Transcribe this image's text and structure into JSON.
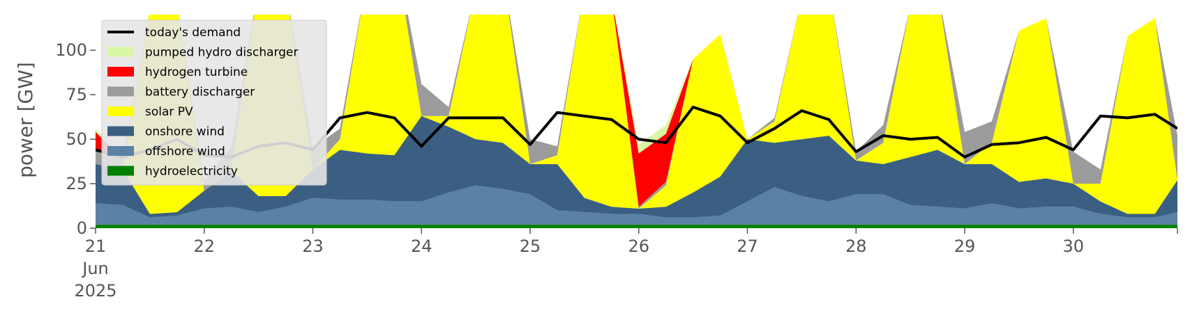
{
  "chart_data": {
    "type": "area",
    "title": "",
    "xlabel": "",
    "ylabel": "power [GW]",
    "ylim": [
      0,
      120
    ],
    "xlim": [
      "2025-06-21 00:00",
      "2025-06-30 23:00"
    ],
    "yticks": [
      0,
      25,
      50,
      75,
      100
    ],
    "xticks": [
      "2025-06-21",
      "2025-06-22",
      "2025-06-23",
      "2025-06-24",
      "2025-06-25",
      "2025-06-26",
      "2025-06-27",
      "2025-06-28",
      "2025-06-29",
      "2025-06-30"
    ],
    "xtick_labels": [
      [
        "21",
        "Jun",
        "2025"
      ],
      [
        "22"
      ],
      [
        "23"
      ],
      [
        "24"
      ],
      [
        "25"
      ],
      [
        "26"
      ],
      [
        "27"
      ],
      [
        "28"
      ],
      [
        "29"
      ],
      [
        "30"
      ]
    ],
    "grid": false,
    "legend_position": "top-left",
    "legend": [
      "today's demand",
      "pumped hydro discharger",
      "hydrogen turbine",
      "battery discharger",
      "solar PV",
      "onshore wind",
      "offshore wind",
      "hydroelectricity"
    ],
    "x_time": [
      "2025-06-21 00:00",
      "2025-06-21 06:00",
      "2025-06-21 12:00",
      "2025-06-21 18:00",
      "2025-06-22 00:00",
      "2025-06-22 06:00",
      "2025-06-22 12:00",
      "2025-06-22 18:00",
      "2025-06-23 00:00",
      "2025-06-23 06:00",
      "2025-06-23 12:00",
      "2025-06-23 18:00",
      "2025-06-24 00:00",
      "2025-06-24 06:00",
      "2025-06-24 12:00",
      "2025-06-24 18:00",
      "2025-06-25 00:00",
      "2025-06-25 06:00",
      "2025-06-25 12:00",
      "2025-06-25 18:00",
      "2025-06-26 00:00",
      "2025-06-26 06:00",
      "2025-06-26 12:00",
      "2025-06-26 18:00",
      "2025-06-27 00:00",
      "2025-06-27 06:00",
      "2025-06-27 12:00",
      "2025-06-27 18:00",
      "2025-06-28 00:00",
      "2025-06-28 06:00",
      "2025-06-28 12:00",
      "2025-06-28 18:00",
      "2025-06-29 00:00",
      "2025-06-29 06:00",
      "2025-06-29 12:00",
      "2025-06-29 18:00",
      "2025-06-30 00:00",
      "2025-06-30 06:00",
      "2025-06-30 12:00",
      "2025-06-30 18:00",
      "2025-06-30 23:00"
    ],
    "series": [
      {
        "name": "hydroelectricity",
        "color": "#008000",
        "values": [
          2,
          2,
          2,
          2,
          2,
          2,
          2,
          2,
          2,
          2,
          2,
          2,
          2,
          2,
          2,
          2,
          2,
          2,
          2,
          2,
          2,
          2,
          2,
          2,
          2,
          2,
          2,
          2,
          2,
          2,
          2,
          2,
          2,
          2,
          2,
          2,
          2,
          2,
          2,
          2,
          2
        ]
      },
      {
        "name": "offshore wind",
        "color": "#5b81a5",
        "values": [
          12,
          11,
          4,
          5,
          9,
          10,
          7,
          10,
          15,
          14,
          14,
          13,
          13,
          18,
          22,
          20,
          17,
          8,
          7,
          6,
          6,
          4,
          4,
          5,
          13,
          21,
          16,
          13,
          17,
          17,
          11,
          10,
          9,
          12,
          9,
          10,
          10,
          6,
          4,
          4,
          7
        ]
      },
      {
        "name": "onshore wind",
        "color": "#3a5f82",
        "values": [
          22,
          20,
          2,
          2,
          10,
          20,
          9,
          6,
          16,
          28,
          26,
          26,
          48,
          37,
          26,
          26,
          17,
          26,
          8,
          4,
          3,
          6,
          14,
          22,
          35,
          25,
          32,
          37,
          19,
          17,
          27,
          32,
          25,
          22,
          15,
          16,
          13,
          7,
          2,
          2,
          18
        ]
      },
      {
        "name": "solar PV",
        "color": "#ffff00",
        "values": [
          0,
          0,
          115,
          118,
          0,
          0,
          118,
          118,
          0,
          6,
          100,
          118,
          0,
          6,
          85,
          95,
          0,
          5,
          118,
          118,
          0,
          12,
          75,
          80,
          0,
          12,
          80,
          85,
          0,
          12,
          85,
          90,
          0,
          12,
          85,
          90,
          0,
          10,
          100,
          110,
          0
        ]
      },
      {
        "name": "battery discharger",
        "color": "#9b9b9b",
        "values": [
          8,
          6,
          0,
          0,
          6,
          14,
          0,
          0,
          12,
          6,
          0,
          0,
          18,
          5,
          0,
          0,
          14,
          5,
          0,
          0,
          1,
          2,
          0,
          0,
          0,
          2,
          0,
          0,
          5,
          10,
          0,
          0,
          18,
          12,
          0,
          0,
          18,
          8,
          0,
          0,
          25
        ]
      },
      {
        "name": "hydrogen turbine",
        "color": "#ff0000",
        "values": [
          10,
          0,
          0,
          0,
          0,
          0,
          0,
          0,
          0,
          0,
          0,
          0,
          0,
          0,
          0,
          0,
          0,
          0,
          0,
          0,
          30,
          27,
          0,
          0,
          0,
          0,
          0,
          0,
          0,
          0,
          0,
          0,
          0,
          0,
          0,
          0,
          0,
          0,
          0,
          0,
          0
        ]
      },
      {
        "name": "pumped hydro discharger",
        "color": "#d9f7a5",
        "values": [
          2,
          0,
          0,
          0,
          0,
          0,
          0,
          0,
          0,
          0,
          0,
          0,
          0,
          0,
          0,
          0,
          0,
          0,
          0,
          0,
          5,
          5,
          0,
          0,
          0,
          0,
          0,
          0,
          0,
          0,
          0,
          0,
          0,
          0,
          0,
          0,
          0,
          0,
          0,
          0,
          0
        ]
      }
    ],
    "demand": {
      "name": "today's demand",
      "color": "#000000",
      "values": [
        44,
        40,
        44,
        50,
        41,
        40,
        46,
        48,
        44,
        62,
        65,
        62,
        46,
        62,
        62,
        62,
        47,
        65,
        63,
        61,
        50,
        48,
        68,
        63,
        48,
        56,
        66,
        61,
        43,
        52,
        50,
        51,
        40,
        47,
        48,
        51,
        44,
        63,
        62,
        64,
        56
      ]
    }
  }
}
